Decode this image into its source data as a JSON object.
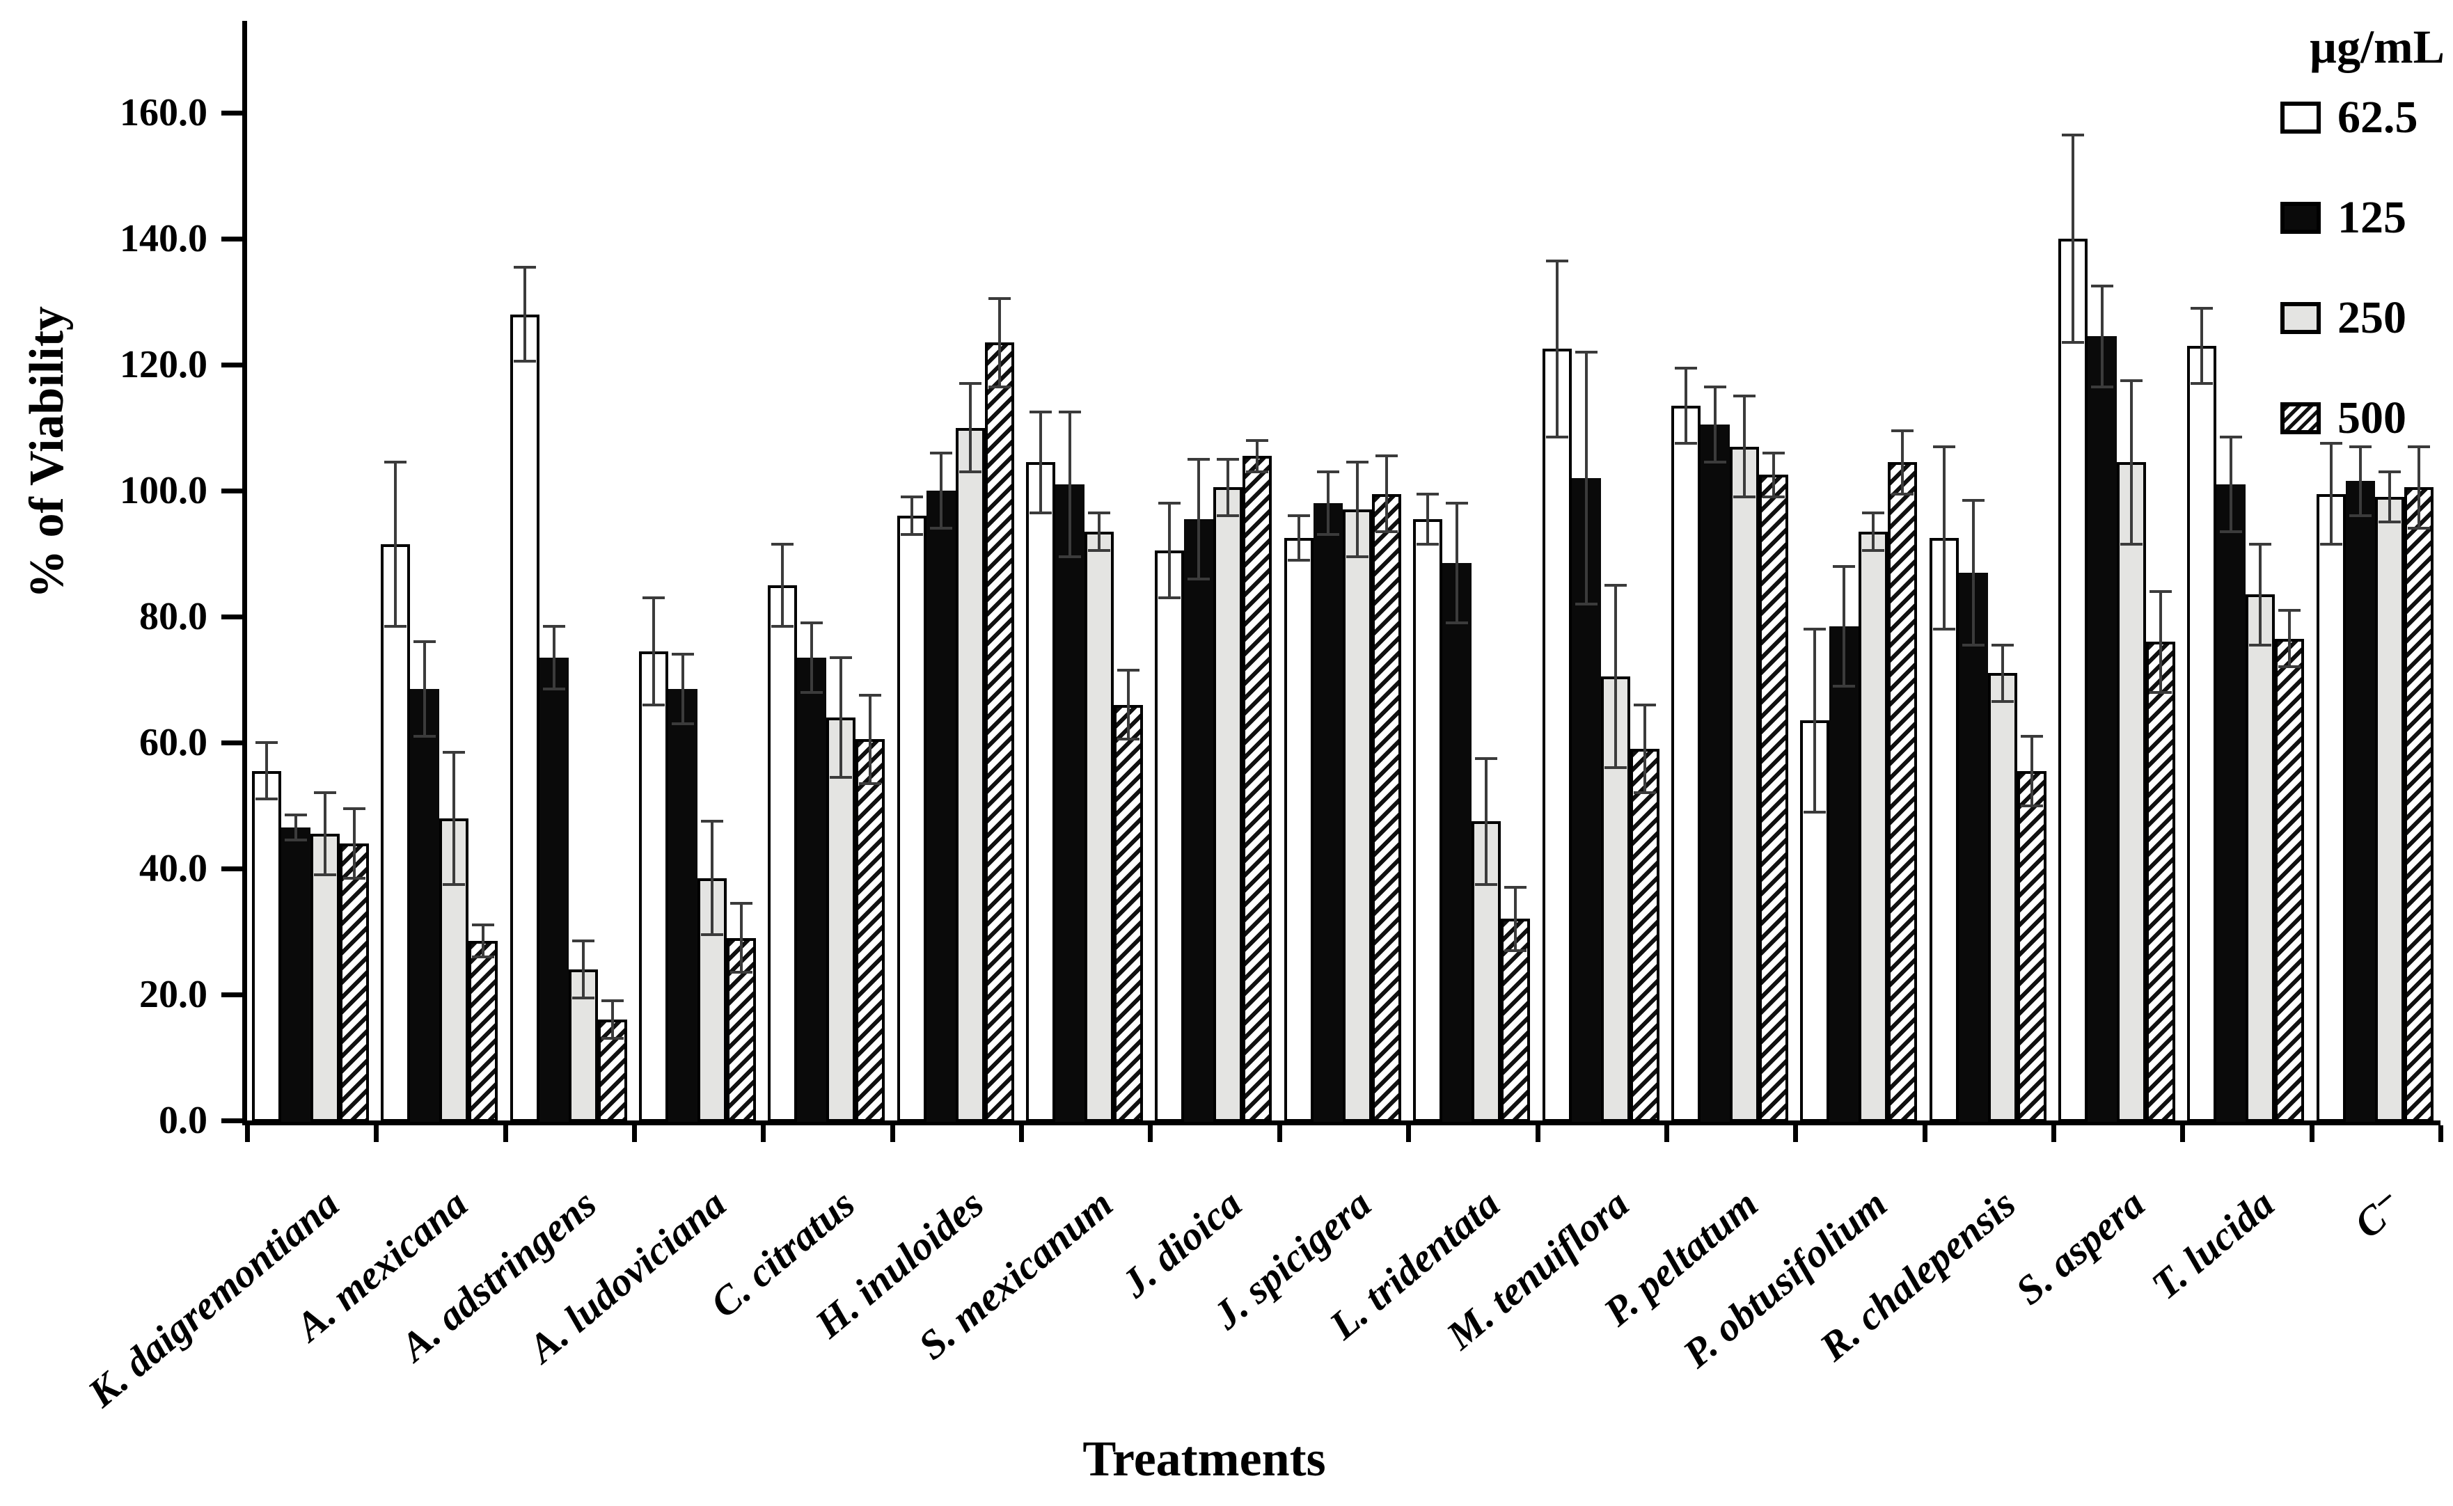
{
  "figure": {
    "y_axis_title": "% of Viability",
    "x_axis_title": "Treatments",
    "legend_title": "µg/mL"
  },
  "chart_data": {
    "type": "bar",
    "title": "",
    "xlabel": "Treatments",
    "ylabel": "% of Viability",
    "ylim": [
      0,
      176
    ],
    "ytick_interval": 20,
    "ytick_labels": [
      "0.0",
      "20.0",
      "40.0",
      "60.0",
      "80.0",
      "100.0",
      "120.0",
      "140.0",
      "160.0"
    ],
    "grid": false,
    "legend_position": "top-right",
    "legend_title": "µg/mL",
    "error_bars": "symmetric, shown on every bar",
    "categories": [
      "K. daigremontiana",
      "A. mexicana",
      "A. adstringens",
      "A. ludoviciana",
      "C. citratus",
      "H. inuloides",
      "S. mexicanum",
      "J. dioica",
      "J. spicigera",
      "L. tridentata",
      "M. tenuiflora",
      "P. peltatum",
      "P. obtusifolium",
      "R. chalepensis",
      "S. aspera",
      "T. lucida",
      "C⁻"
    ],
    "series": [
      {
        "name": "62.5",
        "style": "white",
        "values": [
          55.5,
          91.5,
          128.0,
          74.5,
          85.0,
          96.0,
          104.5,
          90.5,
          92.5,
          95.5,
          122.5,
          113.5,
          63.5,
          92.5,
          140.0,
          123.0,
          99.5
        ],
        "errors": [
          4.5,
          13.0,
          7.5,
          8.5,
          6.5,
          3.0,
          8.0,
          7.5,
          3.5,
          4.0,
          14.0,
          6.0,
          14.5,
          14.5,
          16.5,
          6.0,
          8.0
        ]
      },
      {
        "name": "125",
        "style": "black",
        "values": [
          46.5,
          68.5,
          73.5,
          68.5,
          73.5,
          100.0,
          101.0,
          95.5,
          98.0,
          88.5,
          102.0,
          110.5,
          78.5,
          87.0,
          124.5,
          101.0,
          101.5
        ],
        "errors": [
          2.0,
          7.5,
          5.0,
          5.5,
          5.5,
          6.0,
          11.5,
          9.5,
          5.0,
          9.5,
          20.0,
          6.0,
          9.5,
          11.5,
          8.0,
          7.5,
          5.5
        ]
      },
      {
        "name": "250",
        "style": "lightgray",
        "values": [
          45.5,
          48.0,
          24.0,
          38.5,
          64.0,
          110.0,
          93.5,
          100.5,
          97.0,
          47.5,
          70.5,
          107.0,
          93.5,
          71.0,
          104.5,
          83.5,
          99.0
        ],
        "errors": [
          6.5,
          10.5,
          4.5,
          9.0,
          9.5,
          7.0,
          3.0,
          4.5,
          7.5,
          10.0,
          14.5,
          8.0,
          3.0,
          4.5,
          13.0,
          8.0,
          4.0
        ]
      },
      {
        "name": "500",
        "style": "hatched",
        "values": [
          44.0,
          28.5,
          16.0,
          29.0,
          60.5,
          123.5,
          66.0,
          105.5,
          99.5,
          32.0,
          59.0,
          102.5,
          104.5,
          55.5,
          76.0,
          76.5,
          100.5
        ],
        "errors": [
          5.5,
          2.5,
          3.0,
          5.5,
          7.0,
          7.0,
          5.5,
          2.5,
          6.0,
          5.0,
          7.0,
          3.5,
          5.0,
          5.5,
          8.0,
          4.5,
          6.5
        ]
      }
    ]
  }
}
